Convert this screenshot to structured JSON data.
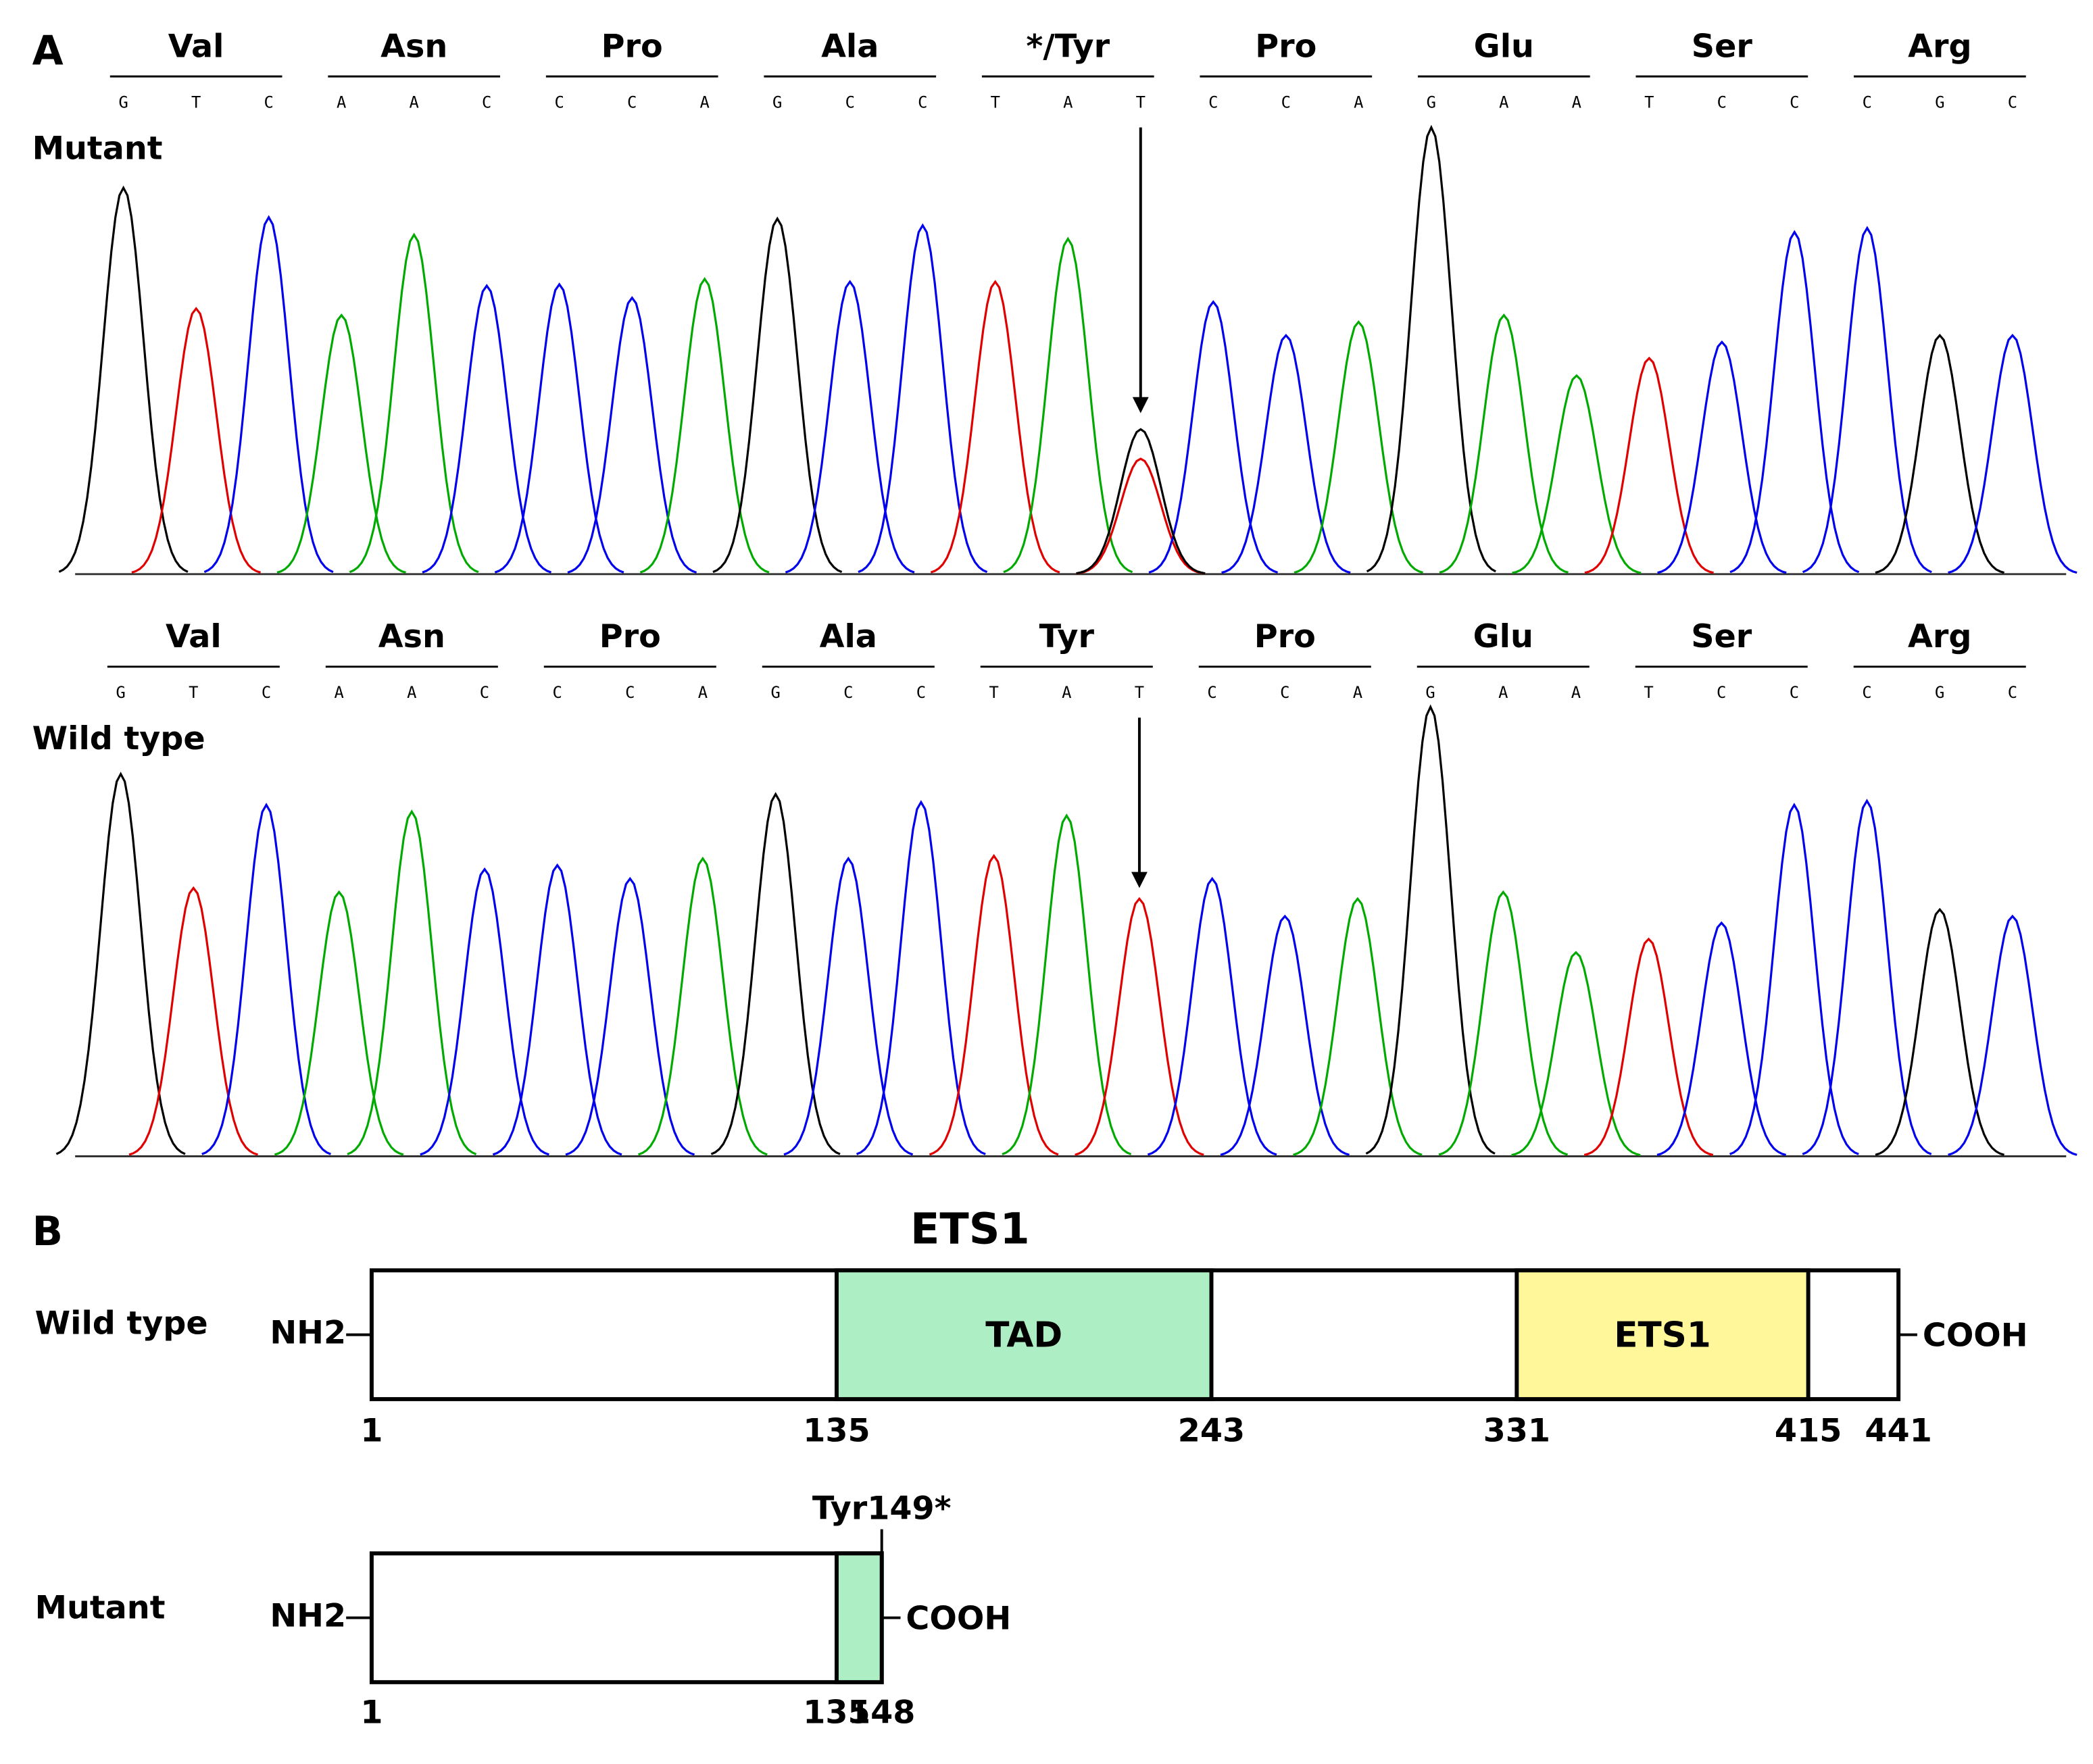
{
  "panel_a": {
    "label": "A",
    "base_colors": {
      "G": "#000000",
      "T": "#e00000",
      "C": "#0000ee",
      "A": "#00aa00"
    },
    "traces": [
      {
        "label": "Mutant",
        "codons": [
          {
            "amino_acid": "Val",
            "bases": [
              "G",
              "T",
              "C"
            ]
          },
          {
            "amino_acid": "Asn",
            "bases": [
              "A",
              "A",
              "C"
            ]
          },
          {
            "amino_acid": "Pro",
            "bases": [
              "C",
              "C",
              "A"
            ]
          },
          {
            "amino_acid": "Ala",
            "bases": [
              "G",
              "C",
              "C"
            ]
          },
          {
            "amino_acid": "*/Tyr",
            "bases": [
              "T",
              "A",
              "T"
            ]
          },
          {
            "amino_acid": "Pro",
            "bases": [
              "C",
              "C",
              "A"
            ]
          },
          {
            "amino_acid": "Glu",
            "bases": [
              "G",
              "A",
              "A"
            ]
          },
          {
            "amino_acid": "Ser",
            "bases": [
              "T",
              "C",
              "C"
            ]
          },
          {
            "amino_acid": "Arg",
            "bases": [
              "C",
              "G",
              "C"
            ]
          }
        ],
        "peak_heights": [
          288,
          198,
          266,
          193,
          253,
          215,
          216,
          206,
          220,
          265,
          218,
          260,
          218,
          250,
          86,
          203,
          178,
          188,
          333,
          193,
          148,
          161,
          173,
          255,
          258,
          178,
          178
        ],
        "secondary_peaks": [
          {
            "index": 14,
            "base": "G",
            "height": 108
          }
        ]
      },
      {
        "label": "Wild type",
        "codons": [
          {
            "amino_acid": "Val",
            "bases": [
              "G",
              "T",
              "C"
            ]
          },
          {
            "amino_acid": "Asn",
            "bases": [
              "A",
              "A",
              "C"
            ]
          },
          {
            "amino_acid": "Pro",
            "bases": [
              "C",
              "C",
              "A"
            ]
          },
          {
            "amino_acid": "Ala",
            "bases": [
              "G",
              "C",
              "C"
            ]
          },
          {
            "amino_acid": "Tyr",
            "bases": [
              "T",
              "A",
              "T"
            ]
          },
          {
            "amino_acid": "Pro",
            "bases": [
              "C",
              "C",
              "A"
            ]
          },
          {
            "amino_acid": "Glu",
            "bases": [
              "G",
              "A",
              "A"
            ]
          },
          {
            "amino_acid": "Ser",
            "bases": [
              "T",
              "C",
              "C"
            ]
          },
          {
            "amino_acid": "Arg",
            "bases": [
              "C",
              "G",
              "C"
            ]
          }
        ],
        "peak_heights": [
          285,
          200,
          262,
          197,
          257,
          214,
          217,
          207,
          222,
          270,
          222,
          264,
          224,
          254,
          192,
          207,
          179,
          192,
          335,
          197,
          152,
          162,
          174,
          262,
          265,
          184,
          179
        ],
        "secondary_peaks": []
      }
    ]
  },
  "panel_b": {
    "label": "B",
    "title": "ETS1",
    "proteins": [
      {
        "label": "Wild type",
        "n_term": "NH2",
        "c_term": "COOH",
        "length": 441,
        "domains": [
          {
            "name": "TAD",
            "start": 135,
            "end": 243,
            "color": "#aeeec4"
          },
          {
            "name": "ETS1",
            "start": 331,
            "end": 415,
            "color": "#fff799"
          }
        ],
        "ticks": [
          1,
          135,
          243,
          331,
          415,
          441
        ]
      },
      {
        "label": "Mutant",
        "n_term": "NH2",
        "c_term": "COOH",
        "length": 148,
        "domains": [
          {
            "start": 135,
            "end": 148,
            "color": "#aeeec4"
          }
        ],
        "ticks": [
          1,
          135,
          148
        ],
        "site_label": "Tyr149*"
      }
    ]
  }
}
